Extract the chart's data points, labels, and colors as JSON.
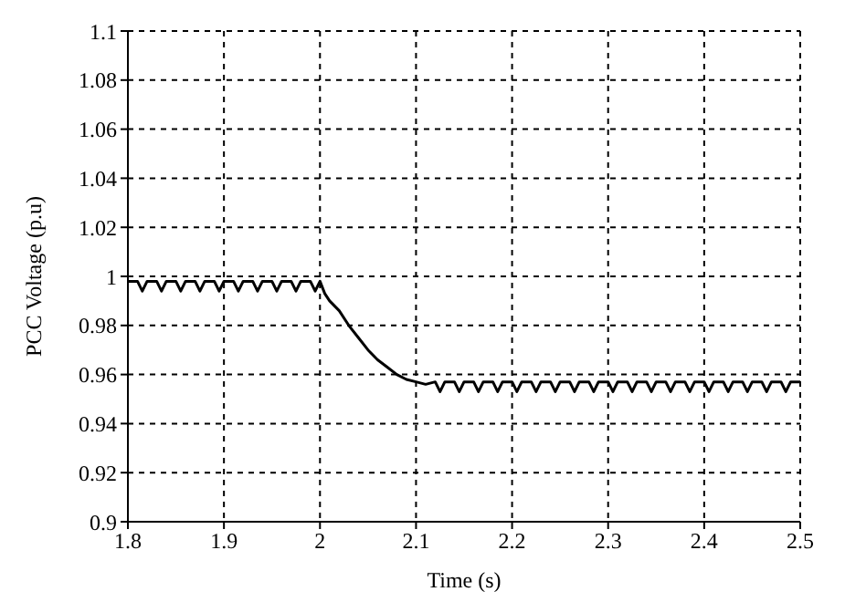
{
  "chart_data": {
    "type": "line",
    "xlabel": "Time (s)",
    "ylabel": "PCC Voltage (p.u)",
    "xlim": [
      1.8,
      2.5
    ],
    "xticks": [
      1.8,
      1.9,
      2,
      2.1,
      2.2,
      2.3,
      2.4,
      2.5
    ],
    "ylim": [
      0.9,
      1.1
    ],
    "yticks": [
      0.9,
      0.92,
      0.94,
      0.96,
      0.98,
      1,
      1.02,
      1.04,
      1.06,
      1.08,
      1.1
    ],
    "grid": true,
    "marker": "none",
    "line_style": "solid",
    "series": [
      {
        "color": "#000000",
        "x": [
          1.8,
          1.81,
          1.815,
          1.82,
          1.83,
          1.835,
          1.84,
          1.85,
          1.855,
          1.86,
          1.87,
          1.875,
          1.88,
          1.89,
          1.895,
          1.9,
          1.91,
          1.915,
          1.92,
          1.93,
          1.935,
          1.94,
          1.95,
          1.955,
          1.96,
          1.97,
          1.975,
          1.98,
          1.99,
          1.995,
          2.0,
          2.005,
          2.01,
          2.02,
          2.03,
          2.04,
          2.05,
          2.06,
          2.07,
          2.08,
          2.09,
          2.1,
          2.11,
          2.12,
          2.125,
          2.13,
          2.14,
          2.145,
          2.15,
          2.16,
          2.165,
          2.17,
          2.18,
          2.185,
          2.19,
          2.2,
          2.205,
          2.21,
          2.22,
          2.225,
          2.23,
          2.24,
          2.245,
          2.25,
          2.26,
          2.265,
          2.27,
          2.28,
          2.285,
          2.29,
          2.3,
          2.305,
          2.31,
          2.32,
          2.325,
          2.33,
          2.34,
          2.345,
          2.35,
          2.36,
          2.365,
          2.37,
          2.38,
          2.385,
          2.39,
          2.4,
          2.405,
          2.41,
          2.42,
          2.425,
          2.43,
          2.44,
          2.445,
          2.45,
          2.46,
          2.465,
          2.47,
          2.48,
          2.485,
          2.49,
          2.5
        ],
        "values": [
          0.998,
          0.998,
          0.994,
          0.998,
          0.998,
          0.994,
          0.998,
          0.998,
          0.994,
          0.998,
          0.998,
          0.994,
          0.998,
          0.998,
          0.994,
          0.998,
          0.998,
          0.994,
          0.998,
          0.998,
          0.994,
          0.998,
          0.998,
          0.994,
          0.998,
          0.998,
          0.994,
          0.998,
          0.998,
          0.994,
          0.998,
          0.993,
          0.99,
          0.986,
          0.98,
          0.975,
          0.97,
          0.966,
          0.963,
          0.96,
          0.958,
          0.957,
          0.956,
          0.957,
          0.953,
          0.957,
          0.957,
          0.953,
          0.957,
          0.957,
          0.953,
          0.957,
          0.957,
          0.953,
          0.957,
          0.957,
          0.953,
          0.957,
          0.957,
          0.953,
          0.957,
          0.957,
          0.953,
          0.957,
          0.957,
          0.953,
          0.957,
          0.957,
          0.953,
          0.957,
          0.957,
          0.953,
          0.957,
          0.957,
          0.953,
          0.957,
          0.957,
          0.953,
          0.957,
          0.957,
          0.953,
          0.957,
          0.957,
          0.953,
          0.957,
          0.957,
          0.953,
          0.957,
          0.957,
          0.953,
          0.957,
          0.957,
          0.953,
          0.957,
          0.957,
          0.953,
          0.957,
          0.957,
          0.953,
          0.957,
          0.957
        ]
      }
    ]
  }
}
